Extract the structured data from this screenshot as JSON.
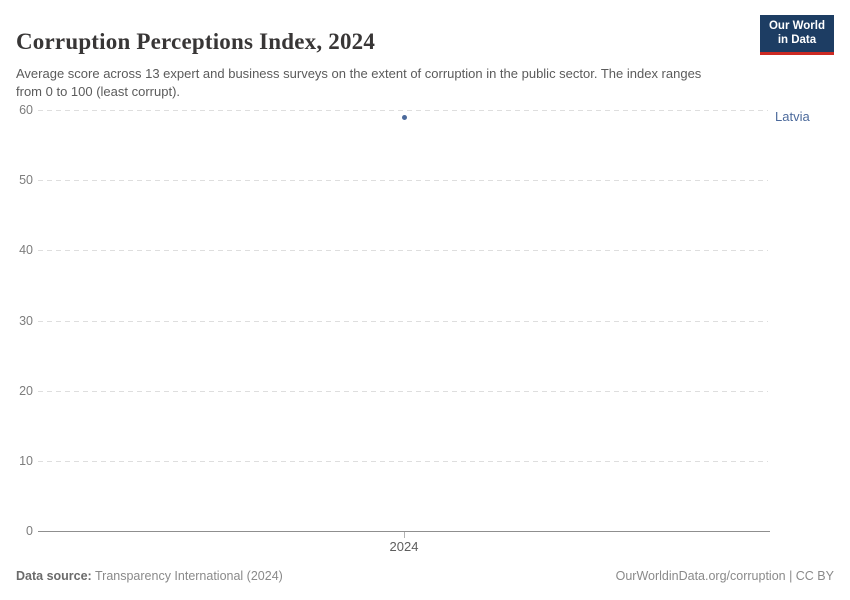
{
  "header": {
    "title": "Corruption Perceptions Index, 2024",
    "subtitle": "Average score across 13 expert and business surveys on the extent of corruption in the public sector. The index ranges from 0 to 100 (least corrupt).",
    "logo": {
      "line1": "Our World",
      "line2": "in Data"
    }
  },
  "chart_data": {
    "type": "scatter",
    "title": "Corruption Perceptions Index, 2024",
    "x": [
      2024
    ],
    "xtick_labels": [
      "2024"
    ],
    "series": [
      {
        "name": "Latvia",
        "values": [
          59
        ],
        "color": "#4C6A9C"
      }
    ],
    "xlabel": "",
    "ylabel": "",
    "ylim": [
      0,
      60
    ],
    "yticks": [
      0,
      10,
      20,
      30,
      40,
      50,
      60
    ],
    "grid": "horizontal-dashed",
    "legend_position": "right-of-point"
  },
  "footer": {
    "source_label": "Data source:",
    "source_value": "Transparency International (2024)",
    "credit": "OurWorldinData.org/corruption | CC BY"
  },
  "colors": {
    "accent_blue": "#4C6A9C",
    "logo_navy": "#1d3d63",
    "logo_red": "#cc2a23",
    "gridline": "#dedede",
    "axis": "#8f8f8f",
    "title_text": "#383636",
    "subtitle_text": "#5b5b5b"
  }
}
